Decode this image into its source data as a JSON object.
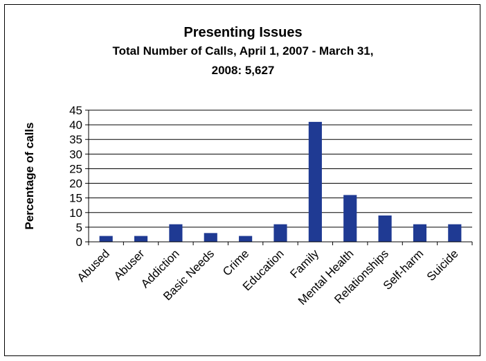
{
  "chart_data": {
    "type": "bar",
    "title": "Presenting Issues",
    "subtitle_line1": "Total Number of Calls, April 1, 2007 - March 31,",
    "subtitle_line2": "2008: 5,627",
    "xlabel": "",
    "ylabel": "Percentage of calls",
    "categories": [
      "Abused",
      "Abuser",
      "Addiction",
      "Basic Needs",
      "Crime",
      "Education",
      "Family",
      "Mental Health",
      "Relationships",
      "Self-harm",
      "Suicide"
    ],
    "values": [
      2,
      2,
      6,
      3,
      2,
      6,
      41,
      16,
      9,
      6,
      6
    ],
    "ylim": [
      0,
      45
    ],
    "yticks": [
      0,
      5,
      10,
      15,
      20,
      25,
      30,
      35,
      40,
      45
    ],
    "grid": true,
    "legend": "none",
    "bar_color": "#1f3a93"
  }
}
